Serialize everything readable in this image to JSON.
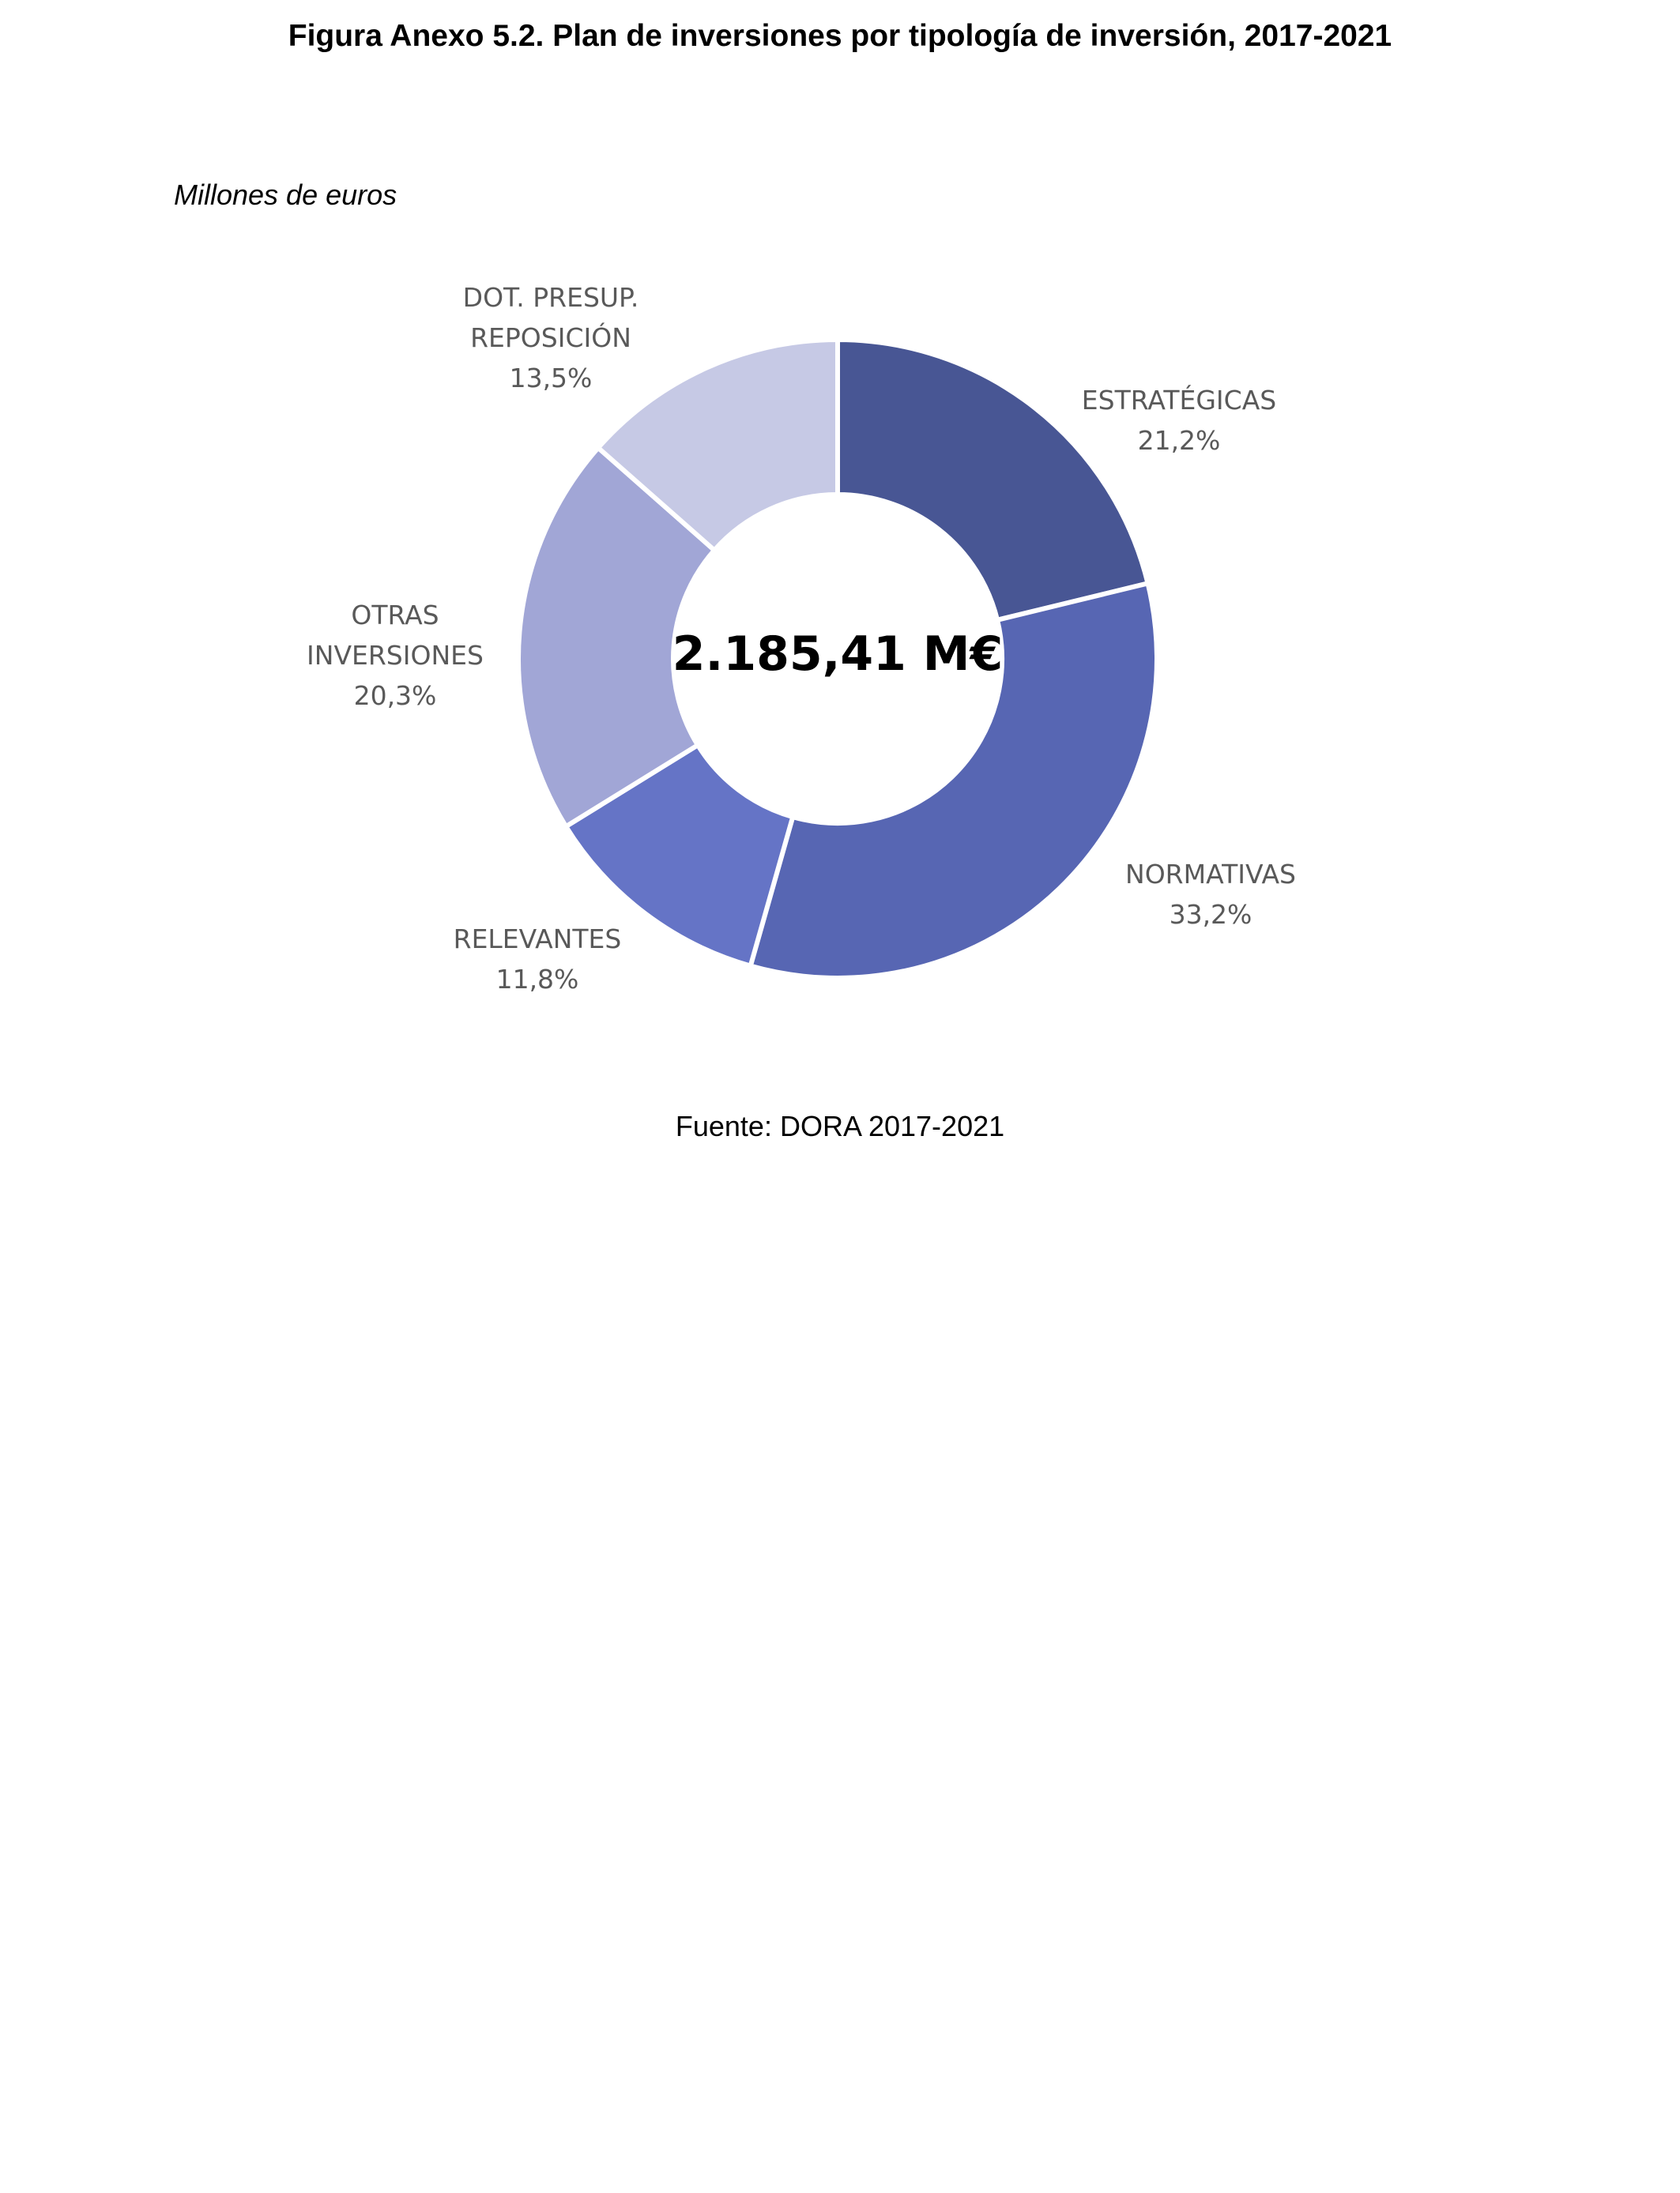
{
  "figure": {
    "title": "Figura Anexo 5.2. Plan de inversiones por tipología de inversión, 2017-2021",
    "units": "Millones de euros",
    "source": "Fuente: DORA 2017-2021"
  },
  "chart_data": {
    "type": "pie",
    "donut": true,
    "center_label": "2.185,41 M€",
    "slices": [
      {
        "name_lines": [
          "ESTRATÉGICAS"
        ],
        "value": 21.2,
        "label": "21,2%",
        "color": "#485694"
      },
      {
        "name_lines": [
          "NORMATIVAS"
        ],
        "value": 33.2,
        "label": "33,2%",
        "color": "#5766b3"
      },
      {
        "name_lines": [
          "RELEVANTES"
        ],
        "value": 11.8,
        "label": "11,8%",
        "color": "#6574c6"
      },
      {
        "name_lines": [
          "OTRAS",
          "INVERSIONES"
        ],
        "value": 20.3,
        "label": "20,3%",
        "color": "#a1a6d6"
      },
      {
        "name_lines": [
          "DOT. PRESUP.",
          "REPOSICIÓN"
        ],
        "value": 13.5,
        "label": "13,5%",
        "color": "#c6c9e5"
      }
    ],
    "start_angle_deg": 0,
    "direction": "clockwise",
    "legend": "none"
  }
}
